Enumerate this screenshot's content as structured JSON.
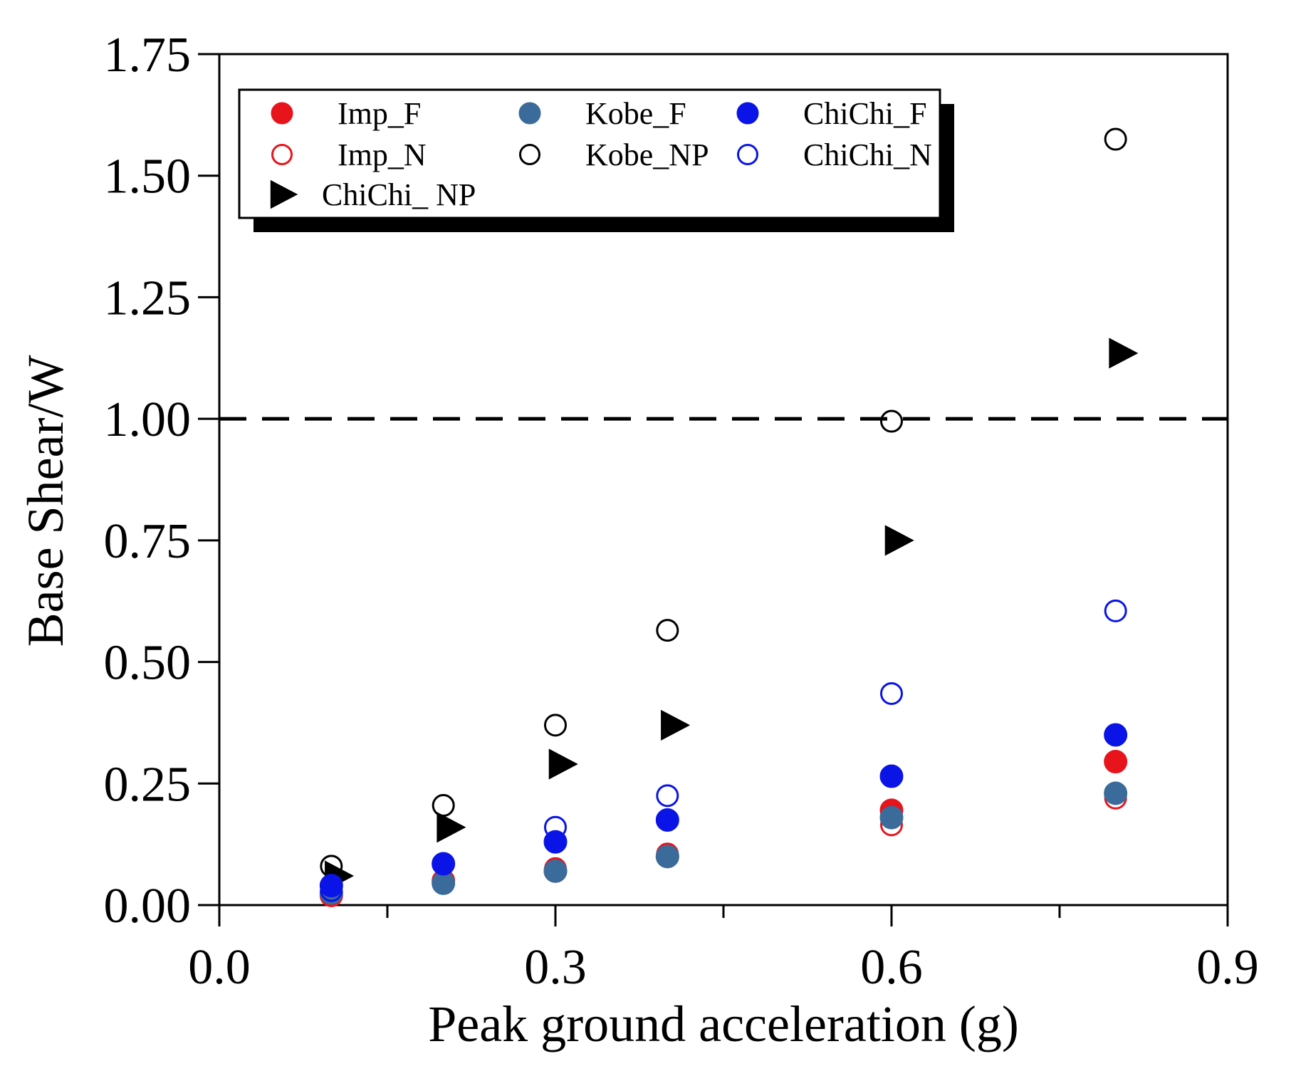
{
  "chart_data": {
    "type": "scatter",
    "xlabel": "Peak ground acceleration (g)",
    "ylabel": "Base Shear/W",
    "xlim": [
      0.0,
      0.9
    ],
    "ylim": [
      0.0,
      1.75
    ],
    "xticks": [
      "0.0",
      "0.3",
      "0.6",
      "0.9"
    ],
    "xticks_values": [
      0.0,
      0.3,
      0.6,
      0.9
    ],
    "xminor_values": [
      0.15,
      0.45,
      0.75
    ],
    "yticks": [
      "0.00",
      "0.25",
      "0.50",
      "0.75",
      "1.00",
      "1.25",
      "1.50",
      "1.75"
    ],
    "yticks_values": [
      0.0,
      0.25,
      0.5,
      0.75,
      1.0,
      1.25,
      1.5,
      1.75
    ],
    "grid": false,
    "legend_position": "top-left",
    "reference_line": {
      "y": 1.0,
      "style": "dashed",
      "color": "#000000"
    },
    "series": [
      {
        "name": "Imp_F",
        "marker": "filled-circle",
        "color": "#e8141c",
        "x": [
          0.1,
          0.2,
          0.3,
          0.4,
          0.6,
          0.8
        ],
        "y": [
          0.02,
          0.05,
          0.07,
          0.1,
          0.195,
          0.295
        ]
      },
      {
        "name": "Imp_N",
        "marker": "open-circle",
        "color": "#e8141c",
        "x": [
          0.1,
          0.2,
          0.3,
          0.4,
          0.6,
          0.8
        ],
        "y": [
          0.02,
          0.05,
          0.075,
          0.105,
          0.165,
          0.22
        ]
      },
      {
        "name": "ChiChi_ NP",
        "marker": "triangle-right",
        "color": "#000000",
        "x": [
          0.1,
          0.2,
          0.3,
          0.4,
          0.6,
          0.8
        ],
        "y": [
          0.06,
          0.16,
          0.29,
          0.37,
          0.75,
          1.135
        ]
      },
      {
        "name": "Kobe_F",
        "marker": "filled-circle",
        "color": "#3a6b9a",
        "x": [
          0.1,
          0.2,
          0.3,
          0.4,
          0.6,
          0.8
        ],
        "y": [
          0.025,
          0.045,
          0.07,
          0.1,
          0.18,
          0.23
        ]
      },
      {
        "name": "Kobe_NP",
        "marker": "open-circle",
        "color": "#000000",
        "x": [
          0.1,
          0.2,
          0.3,
          0.4,
          0.6,
          0.8
        ],
        "y": [
          0.08,
          0.205,
          0.37,
          0.565,
          0.995,
          1.575
        ]
      },
      {
        "name": "ChiChi_F",
        "marker": "filled-circle",
        "color": "#0a14e6",
        "x": [
          0.1,
          0.2,
          0.3,
          0.4,
          0.6,
          0.8
        ],
        "y": [
          0.04,
          0.085,
          0.13,
          0.175,
          0.265,
          0.35
        ]
      },
      {
        "name": "ChiChi_N",
        "marker": "open-circle",
        "color": "#0a14e6",
        "x": [
          0.1,
          0.2,
          0.3,
          0.4,
          0.6,
          0.8
        ],
        "y": [
          0.03,
          0.085,
          0.16,
          0.225,
          0.435,
          0.605
        ]
      }
    ],
    "legend": {
      "rows": [
        [
          "Imp_F",
          "Kobe_F",
          "ChiChi_F"
        ],
        [
          "Imp_N",
          "Kobe_NP",
          "ChiChi_N"
        ],
        [
          "ChiChi_ NP"
        ]
      ]
    }
  }
}
